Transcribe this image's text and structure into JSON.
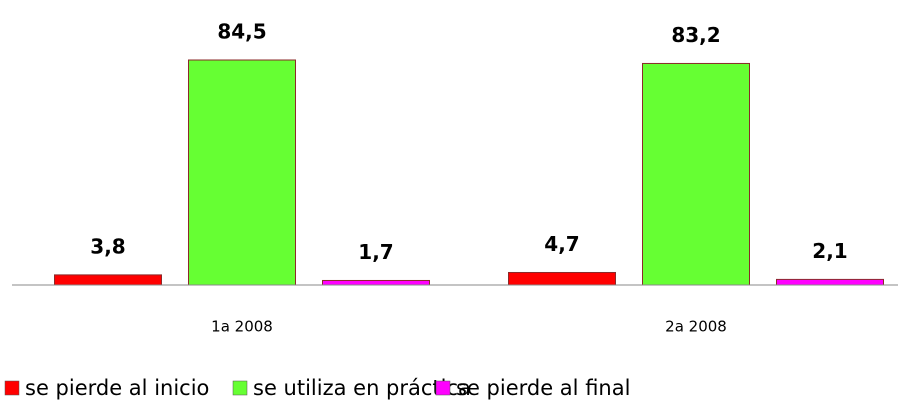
{
  "chart_data": {
    "type": "bar",
    "categories": [
      "1a 2008",
      "2a 2008"
    ],
    "series": [
      {
        "name": "se pierde al inicio",
        "color": "#ff0000",
        "values": [
          3.8,
          4.7
        ],
        "value_labels": [
          "3,8",
          "4,7"
        ]
      },
      {
        "name": "se utiliza en práctica",
        "color": "#66ff33",
        "values": [
          84.5,
          83.2
        ],
        "value_labels": [
          "84,5",
          "83,2"
        ]
      },
      {
        "name": "se pierde al final",
        "color": "#ff00ff",
        "values": [
          1.7,
          2.1
        ],
        "value_labels": [
          "1,7",
          "2,1"
        ]
      }
    ]
  }
}
